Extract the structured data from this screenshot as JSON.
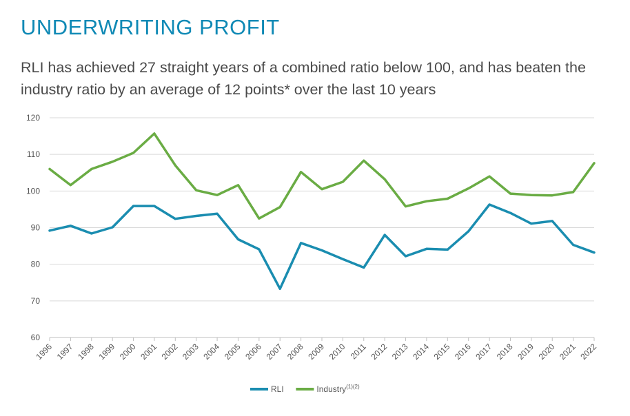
{
  "header": {
    "title": "UNDERWRITING PROFIT",
    "subtitle": "RLI has achieved 27 straight years of a combined ratio below 100, and has beaten the industry ratio by an average of 12 points* over the last 10 years"
  },
  "chart_data": {
    "type": "line",
    "title": "",
    "xlabel": "",
    "ylabel": "",
    "ylim": [
      60,
      120
    ],
    "yticks": [
      60,
      70,
      80,
      90,
      100,
      110,
      120
    ],
    "grid": "horizontal",
    "legend_placement": "bottom-center",
    "categories": [
      "1996",
      "1997",
      "1998",
      "1999",
      "2000",
      "2001",
      "2002",
      "2003",
      "2004",
      "2005",
      "2006",
      "2007",
      "2008",
      "2009",
      "2010",
      "2011",
      "2012",
      "2013",
      "2014",
      "2015",
      "2016",
      "2017",
      "2018",
      "2019",
      "2020",
      "2021",
      "2022"
    ],
    "series": [
      {
        "name": "RLI",
        "color": "#1a8db0",
        "values": [
          89.2,
          90.5,
          88.4,
          90.1,
          95.9,
          95.9,
          92.4,
          93.2,
          93.8,
          86.8,
          84.1,
          73.3,
          85.8,
          83.8,
          81.4,
          79.1,
          88.0,
          82.2,
          84.2,
          84.0,
          89.0,
          96.3,
          94.0,
          91.1,
          91.8,
          85.3,
          83.2
        ]
      },
      {
        "name": "Industry",
        "name_sup": "(1)(2)",
        "color": "#6aac44",
        "values": [
          106.0,
          101.6,
          106.0,
          108.0,
          110.4,
          115.7,
          107.0,
          100.2,
          98.9,
          101.6,
          92.5,
          95.6,
          105.2,
          100.5,
          102.5,
          108.3,
          103.2,
          95.8,
          97.2,
          97.9,
          100.7,
          104.0,
          99.3,
          98.9,
          98.8,
          99.7,
          107.6
        ]
      }
    ]
  }
}
